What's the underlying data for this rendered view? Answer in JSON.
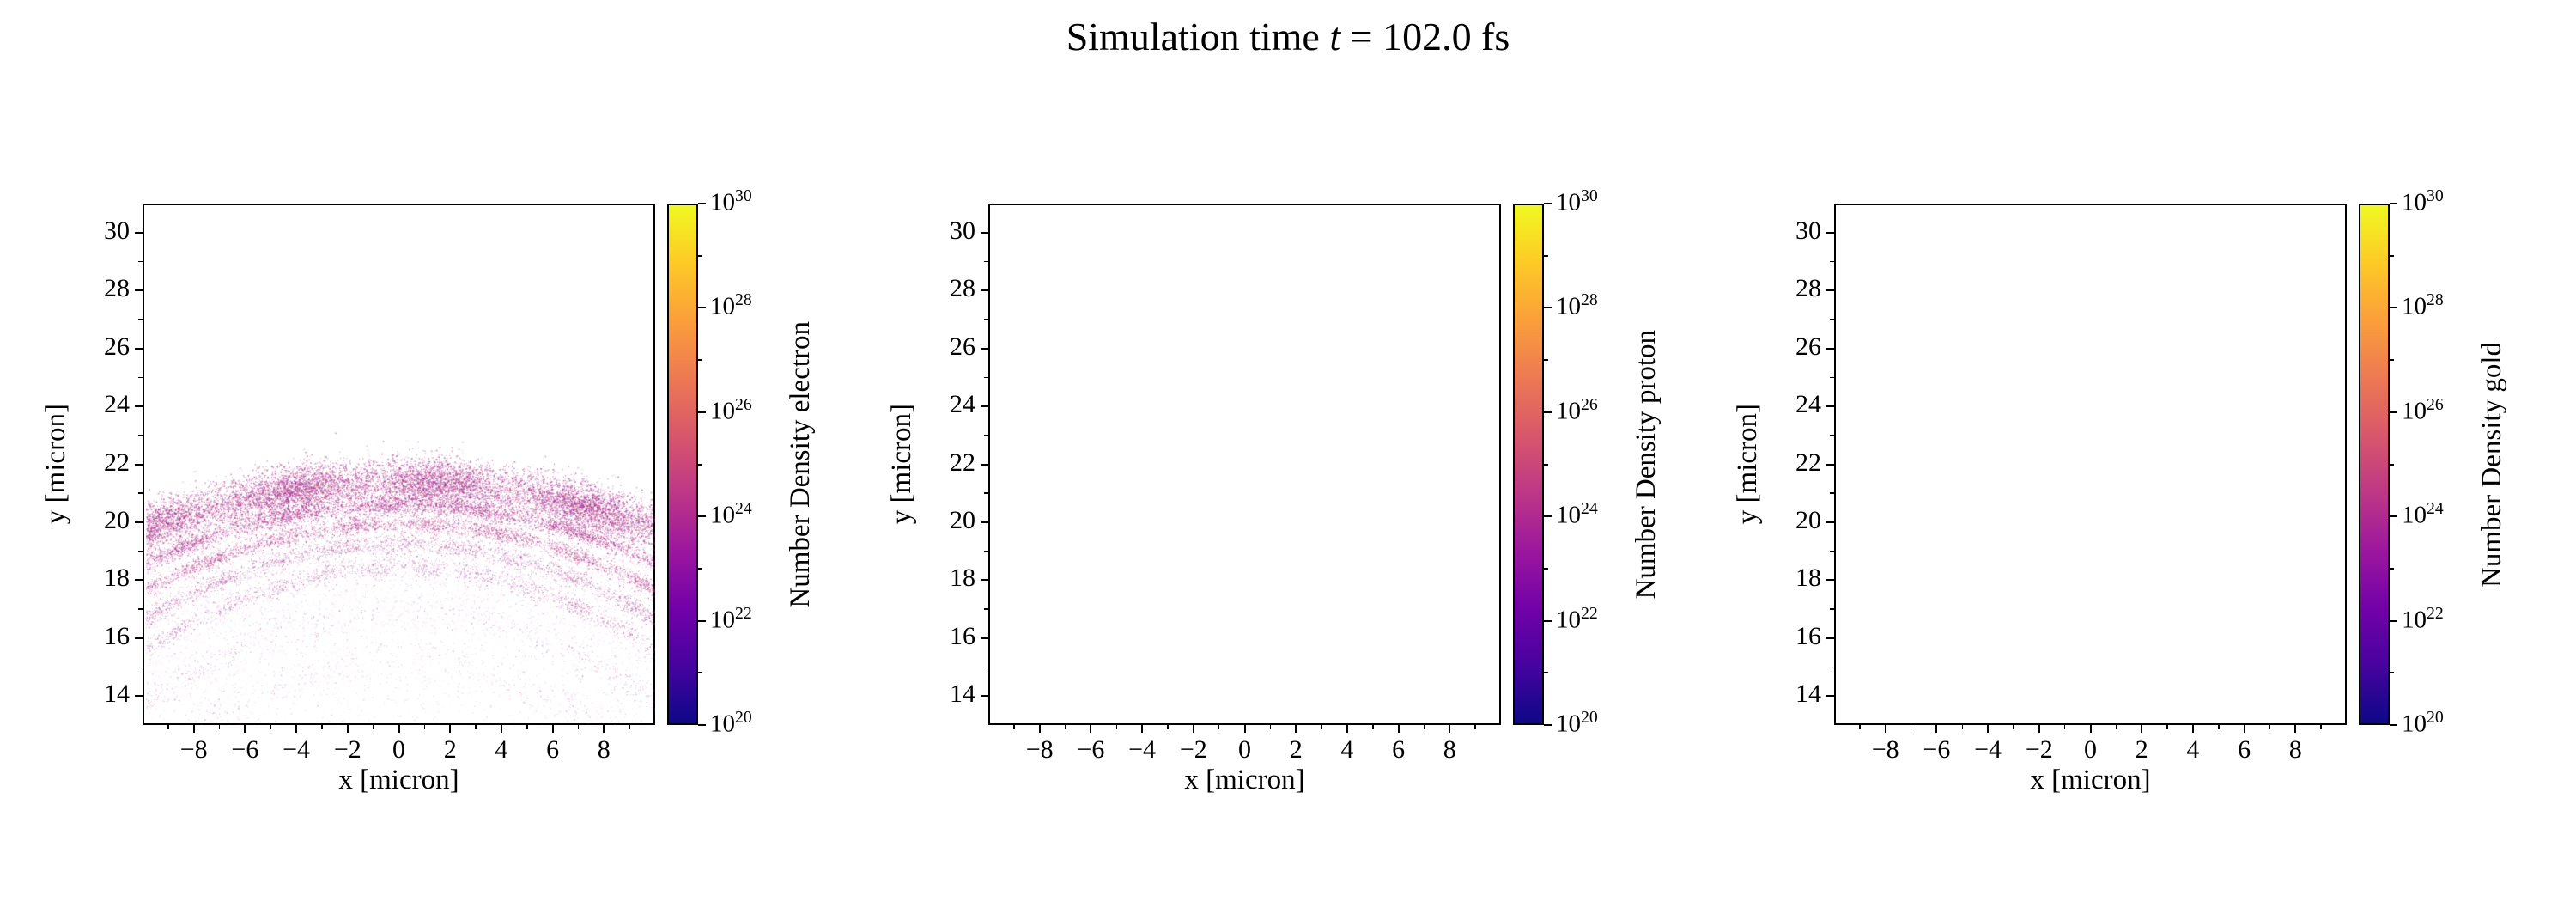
{
  "title": {
    "prefix": "Simulation time ",
    "variable": "t",
    "suffix": " = 102.0 fs"
  },
  "axis": {
    "xlim": [
      -10,
      10
    ],
    "ylim": [
      13,
      31
    ],
    "xticks": [
      -8,
      -6,
      -4,
      -2,
      0,
      2,
      4,
      6,
      8
    ],
    "xtick_labels": [
      "−8",
      "−6",
      "−4",
      "−2",
      "0",
      "2",
      "4",
      "6",
      "8"
    ],
    "xminor": [
      -9,
      -7,
      -5,
      -3,
      -1,
      1,
      3,
      5,
      7,
      9
    ],
    "yticks": [
      14,
      16,
      18,
      20,
      22,
      24,
      26,
      28,
      30
    ],
    "ytick_labels": [
      "14",
      "16",
      "18",
      "20",
      "22",
      "24",
      "26",
      "28",
      "30"
    ],
    "yminor": [
      15,
      17,
      19,
      21,
      23,
      25,
      27,
      29
    ]
  },
  "colorbar": {
    "scale": "log",
    "min_exponent": 20,
    "max_exponent": 30,
    "major_tick_exponents": [
      20,
      22,
      24,
      26,
      28,
      30
    ],
    "tick_base": "10",
    "colormap": "plasma",
    "gradient_stops": [
      "#0d0887",
      "#46039f",
      "#7201a8",
      "#9c179e",
      "#bd3786",
      "#d8576b",
      "#ed7953",
      "#fb9f3a",
      "#fdca26",
      "#f0f921"
    ]
  },
  "chart_data": [
    {
      "type": "scatter",
      "series_name": "Number Density electron",
      "xlabel": "x [micron]",
      "ylabel": "y [micron]",
      "xlim": [
        -10,
        10
      ],
      "ylim": [
        13,
        31
      ],
      "grid": false,
      "colorbar": {
        "label": "Number Density electron",
        "scale": "log",
        "range_exponents": [
          20,
          30
        ]
      },
      "description": "Dome-shaped electron density cloud: dense magenta speckled cap peaking near y=21.8 at x=0 and falling to y=20.2 at |x|=10, with several thin layered arc bands below it (y=18.5 to 20.7 at center, dipping at the edges) and a sparse diffuse speckle of points extending down to y=13; densities correspond to roughly 1e21-1e24 on the plasma colormap.",
      "density_model": {
        "seed": 7,
        "dome_apex_y": 21.8,
        "dome_curvature": 0.016,
        "bands": [
          {
            "offset": 0.35,
            "spread": 0.42,
            "count": 15000,
            "curvature_boost": 0.0,
            "colors": [
              "#a62098",
              "#b5367f",
              "#c0457c",
              "#922b9e"
            ],
            "alpha": 0.5,
            "size": 1.2,
            "edge_weight": false
          },
          {
            "offset": 1.15,
            "spread": 0.15,
            "count": 4500,
            "curvature_boost": 0.004,
            "colors": [
              "#b5367f",
              "#a62098"
            ],
            "alpha": 0.5,
            "size": 1.1,
            "edge_weight": false
          },
          {
            "offset": 1.8,
            "spread": 0.15,
            "count": 3800,
            "curvature_boost": 0.007,
            "colors": [
              "#b5367f",
              "#a62098",
              "#c0457c"
            ],
            "alpha": 0.48,
            "size": 1.1,
            "edge_weight": false
          },
          {
            "offset": 2.5,
            "spread": 0.17,
            "count": 3200,
            "curvature_boost": 0.01,
            "colors": [
              "#b5367f",
              "#9c4fae"
            ],
            "alpha": 0.45,
            "size": 1.0,
            "edge_weight": false
          },
          {
            "offset": 3.3,
            "spread": 0.2,
            "count": 2400,
            "curvature_boost": 0.013,
            "colors": [
              "#b5367f",
              "#9c4fae"
            ],
            "alpha": 0.42,
            "size": 1.0,
            "edge_weight": false
          },
          {
            "offset": 4.8,
            "spread": 0.3,
            "count": 1400,
            "curvature_boost": 0.016,
            "colors": [
              "#b5367f",
              "#9c4fae",
              "#c06ba8"
            ],
            "alpha": 0.38,
            "size": 1.0,
            "edge_weight": true
          },
          {
            "offset": 6.6,
            "spread": 0.4,
            "count": 1000,
            "curvature_boost": 0.02,
            "colors": [
              "#b5367f",
              "#c06ba8"
            ],
            "alpha": 0.35,
            "size": 1.0,
            "edge_weight": true
          }
        ],
        "diffuse": {
          "count": 11000,
          "y_min": 13.0,
          "colors": [
            "#b5367f",
            "#9c4fae",
            "#c06ba8",
            "#a62098"
          ],
          "alpha": 0.22,
          "size": 1.0
        }
      }
    },
    {
      "type": "scatter",
      "series_name": "Number Density proton",
      "xlabel": "x [micron]",
      "ylabel": "y [micron]",
      "xlim": [
        -10,
        10
      ],
      "ylim": [
        13,
        31
      ],
      "grid": false,
      "colorbar": {
        "label": "Number Density proton",
        "scale": "log",
        "range_exponents": [
          20,
          30
        ]
      },
      "description": "Empty panel: no proton density visible at this time step.",
      "points": []
    },
    {
      "type": "scatter",
      "series_name": "Number Density gold",
      "xlabel": "x [micron]",
      "ylabel": "y [micron]",
      "xlim": [
        -10,
        10
      ],
      "ylim": [
        13,
        31
      ],
      "grid": false,
      "colorbar": {
        "label": "Number Density gold",
        "scale": "log",
        "range_exponents": [
          20,
          30
        ]
      },
      "description": "Empty panel: no gold density visible at this time step.",
      "points": []
    }
  ]
}
